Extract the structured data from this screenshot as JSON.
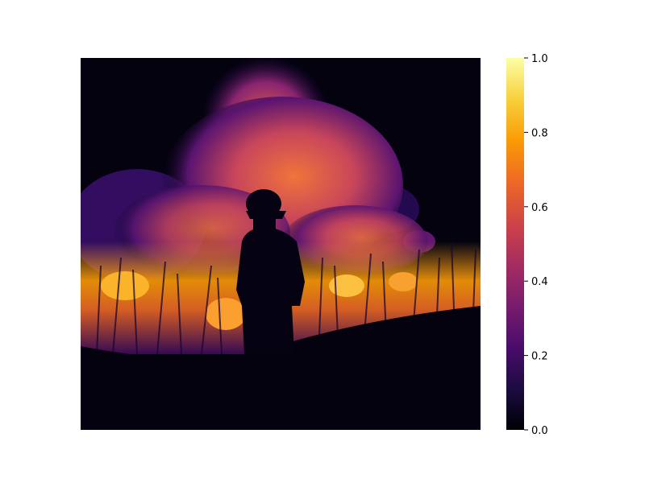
{
  "image": {
    "subject": "firefighter-silhouette-in-front-of-grass-fire",
    "colormap": "inferno"
  },
  "colorbar": {
    "ticks": [
      "0.0",
      "0.2",
      "0.4",
      "0.6",
      "0.8",
      "1.0"
    ],
    "range": [
      0.0,
      1.0
    ],
    "colors": [
      "#000004",
      "#1b0c41",
      "#4a0c6b",
      "#781c6d",
      "#a52c60",
      "#cf4446",
      "#ed6925",
      "#fb9b06",
      "#f7d13d",
      "#fcffa4"
    ]
  }
}
